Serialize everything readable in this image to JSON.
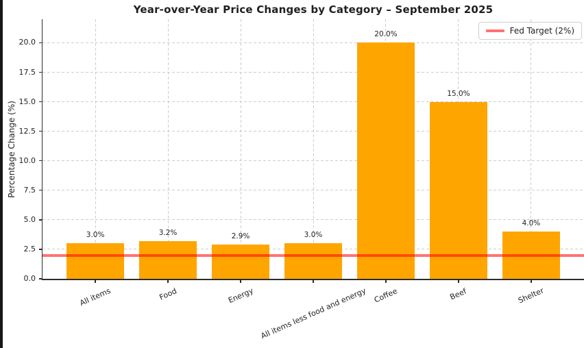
{
  "chart_data": {
    "type": "bar",
    "title": "Year-over-Year Price Changes by Category – September 2025",
    "xlabel": "",
    "ylabel": "Percentage Change (%)",
    "categories": [
      "All items",
      "Food",
      "Energy",
      "All items less food and energy",
      "Coffee",
      "Beef",
      "Shelter"
    ],
    "values": [
      3.0,
      3.2,
      2.9,
      3.0,
      20.0,
      15.0,
      4.0
    ],
    "bar_value_labels": [
      "3.0%",
      "3.2%",
      "2.9%",
      "3.0%",
      "20.0%",
      "15.0%",
      "4.0%"
    ],
    "y_ticks": [
      0.0,
      2.5,
      5.0,
      7.5,
      10.0,
      12.5,
      15.0,
      17.5,
      20.0
    ],
    "y_tick_labels": [
      "0.0",
      "2.5",
      "5.0",
      "7.5",
      "10.0",
      "12.5",
      "15.0",
      "17.5",
      "20.0"
    ],
    "ylim": [
      0,
      22
    ],
    "grid": true,
    "legend": {
      "position": "upper right",
      "entries": [
        "Fed Target (2%)"
      ]
    },
    "reference_line": {
      "value": 2,
      "label": "Fed Target (2%)"
    },
    "colors": {
      "bar": "#FFA500",
      "reference_line": "rgba(255,0,0,0.55)",
      "grid": "#cccccc",
      "axis": "#2b2b2b",
      "text": "#1f1f1f",
      "screen_edge": "#18181b"
    }
  }
}
